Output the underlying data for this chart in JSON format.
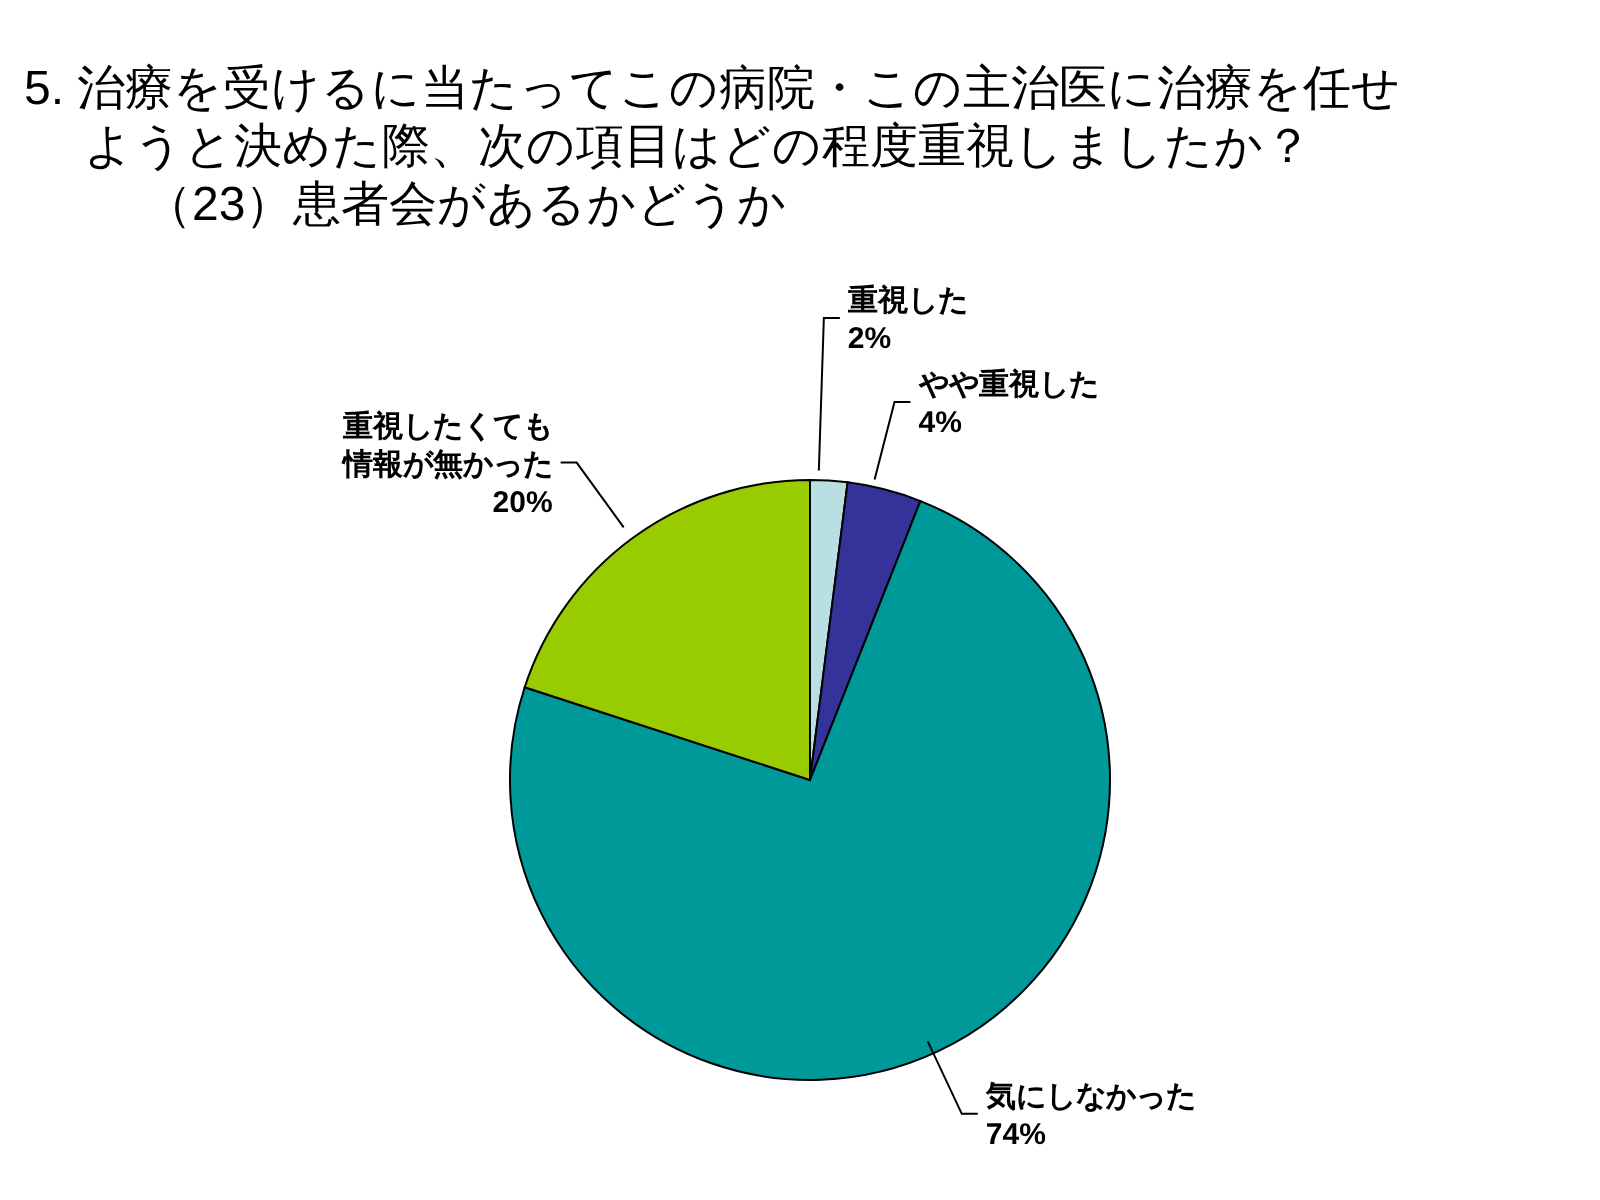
{
  "chart_data": {
    "type": "pie",
    "title": "5. 治療を受けるに当たってこの病院・この主治医に治療を任せようと決めた際、次の項目はどの程度重視しましたか？",
    "subtitle": "（23）患者会があるかどうか",
    "categories": [
      "重視した",
      "やや重視した",
      "気にしなかった",
      "重視したくても情報が無かった"
    ],
    "values": [
      2,
      4,
      74,
      20
    ],
    "colors": [
      "#b9dfe3",
      "#333399",
      "#009999",
      "#99cc00"
    ],
    "value_labels": [
      "2%",
      "4%",
      "74%",
      "20%"
    ]
  }
}
